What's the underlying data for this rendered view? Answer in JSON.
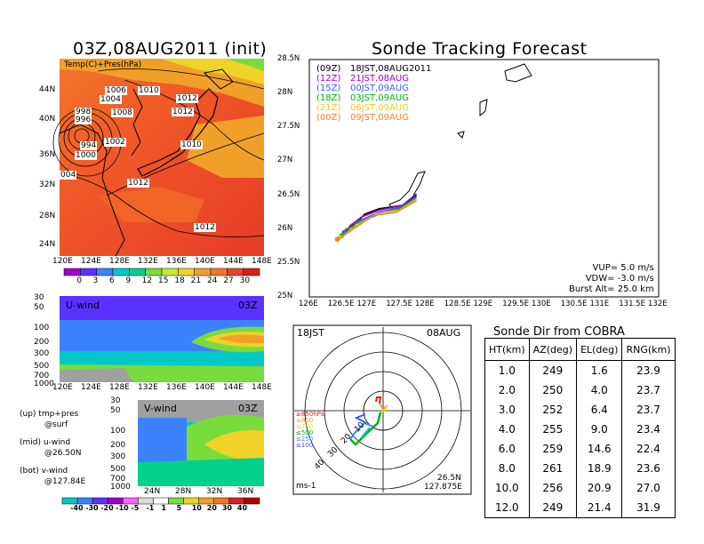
{
  "left_title": "03Z,08AUG2011 (init)",
  "right_title": "Sonde Tracking Forecast",
  "map_panel": {
    "label": "Temp(C)+Pres(hPa)",
    "lat_ticks": [
      "44N",
      "40N",
      "36N",
      "32N",
      "28N",
      "24N"
    ],
    "lon_ticks": [
      "120E",
      "124E",
      "128E",
      "132E",
      "136E",
      "140E",
      "144E",
      "148E"
    ],
    "contour_labels": [
      "1006",
      "1010",
      "1004",
      "998",
      "996",
      "1008",
      "1012",
      "1012",
      "994",
      "1002",
      "1000",
      "1010",
      "004",
      "1012",
      "1012"
    ],
    "colorbar_ticks": [
      "0",
      "3",
      "6",
      "9",
      "12",
      "15",
      "18",
      "21",
      "24",
      "27",
      "30"
    ],
    "colorbar_colors": [
      "#a000c8",
      "#5a32ff",
      "#3c82ff",
      "#00c8c8",
      "#00d28c",
      "#78dc3c",
      "#c8e632",
      "#f0d228",
      "#f0a028",
      "#f07828",
      "#e64628",
      "#dc1e1e"
    ]
  },
  "uwind_panel": {
    "label": "U-wind",
    "time": "03Z",
    "y_ticks": [
      "30",
      "50",
      "100",
      "200",
      "300",
      "500",
      "700",
      "1000"
    ],
    "x_ticks": [
      "120E",
      "124E",
      "128E",
      "132E",
      "136E",
      "140E",
      "144E",
      "148E"
    ]
  },
  "vwind_panel": {
    "label": "V-wind",
    "time": "03Z",
    "y_ticks": [
      "30",
      "50",
      "100",
      "200",
      "300",
      "500",
      "700",
      "1000"
    ],
    "x_ticks": [
      "24N",
      "28N",
      "32N",
      "36N"
    ],
    "colorbar_ticks": [
      "-40",
      "-30",
      "-20",
      "-10",
      "-5",
      "-1",
      "1",
      "5",
      "10",
      "20",
      "30",
      "40"
    ],
    "colorbar_colors": [
      "#00c8c8",
      "#3c82ff",
      "#5a32ff",
      "#a000c8",
      "#ff64ff",
      "#dcdcdc",
      "#ffffff",
      "#78dc3c",
      "#f0d228",
      "#f0a028",
      "#f07828",
      "#dc1e1e",
      "#b40000"
    ]
  },
  "notes": [
    {
      "line1": "(up) tmp+pres",
      "line2": "@surf"
    },
    {
      "line1": "(mid) u-wind",
      "line2": "@26.50N"
    },
    {
      "line1": "(bot) v-wind",
      "line2": "@127.84E"
    }
  ],
  "track_legend": [
    {
      "utc": "(09Z)",
      "jst": "18JST,08AUG2011",
      "color": "#000000"
    },
    {
      "utc": "(12Z)",
      "jst": "21JST,08AUG",
      "color": "#a000c8"
    },
    {
      "utc": "(15Z)",
      "jst": "00JST,09AUG",
      "color": "#3c5aff"
    },
    {
      "utc": "(18Z)",
      "jst": "03JST,09AUG",
      "color": "#00b400"
    },
    {
      "utc": "(21Z)",
      "jst": "06JST,09AUG",
      "color": "#f0c828"
    },
    {
      "utc": "(00Z)",
      "jst": "09JST,09AUG",
      "color": "#f08228"
    }
  ],
  "track_params": {
    "vup": "VUP= 5.0 m/s",
    "vdw": "VDW= -3.0 m/s",
    "burst": "Burst Alt= 25.0 km"
  },
  "polar": {
    "left_label": "18JST",
    "right_label": "08AUG",
    "units": "ms-1",
    "loc_lat": "26.5N",
    "loc_lon": "127.875E",
    "ring_labels": [
      "10",
      "20",
      "30",
      "40"
    ],
    "layer_labels": [
      {
        "text": "≥850hPa",
        "color": "#dc1e1e"
      },
      {
        "text": "≤850",
        "color": "#f0a028"
      },
      {
        "text": "≤700",
        "color": "#f0d228"
      },
      {
        "text": "≤500",
        "color": "#00b400"
      },
      {
        "text": "≤250",
        "color": "#3c82ff"
      },
      {
        "text": "≤100",
        "color": "#3c5aff"
      }
    ]
  },
  "cobra": {
    "title": "Sonde Dir from COBRA",
    "headers": [
      "HT(km)",
      "AZ(deg)",
      "EL(deg)",
      "RNG(km)"
    ],
    "rows": [
      [
        "1.0",
        "249",
        "1.6",
        "23.9"
      ],
      [
        "2.0",
        "250",
        "4.0",
        "23.7"
      ],
      [
        "3.0",
        "252",
        "6.4",
        "23.7"
      ],
      [
        "4.0",
        "255",
        "9.0",
        "23.4"
      ],
      [
        "6.0",
        "259",
        "14.6",
        "22.4"
      ],
      [
        "8.0",
        "261",
        "18.9",
        "23.6"
      ],
      [
        "10.0",
        "256",
        "20.9",
        "27.0"
      ],
      [
        "12.0",
        "249",
        "21.4",
        "31.9"
      ]
    ]
  },
  "chart_data": [
    {
      "type": "line",
      "title": "Sonde Tracking Forecast",
      "xlim": [
        126,
        132
      ],
      "ylim": [
        25,
        28.5
      ],
      "x_ticks": [
        "126E",
        "126.5E",
        "127E",
        "127.5E",
        "128E",
        "128.5E",
        "129E",
        "129.5E",
        "130E",
        "130.5E",
        "131E",
        "131.5E",
        "132E"
      ],
      "y_ticks": [
        "25N",
        "25.5N",
        "26N",
        "26.5N",
        "27N",
        "27.5N",
        "28N",
        "28.5N"
      ],
      "series": [
        {
          "name": "(09Z) 18JST,08AUG2011",
          "color": "#000000",
          "x": [
            127.84,
            127.6,
            127.2,
            126.95,
            126.82,
            126.75
          ],
          "y": [
            26.5,
            26.35,
            26.3,
            26.22,
            26.1,
            26.05
          ]
        },
        {
          "name": "(12Z) 21JST,08AUG",
          "color": "#a000c8",
          "x": [
            127.84,
            127.6,
            127.2,
            126.9,
            126.7,
            126.65
          ],
          "y": [
            26.52,
            26.35,
            26.28,
            26.18,
            26.05,
            25.98
          ]
        },
        {
          "name": "(15Z) 00JST,09AUG",
          "color": "#3c5aff",
          "x": [
            127.84,
            127.6,
            127.2,
            126.85,
            126.65,
            126.6
          ],
          "y": [
            26.48,
            26.33,
            26.25,
            26.12,
            25.98,
            25.95
          ]
        },
        {
          "name": "(18Z) 03JST,09AUG",
          "color": "#00b400",
          "x": [
            127.84,
            127.55,
            127.2,
            126.8,
            126.6,
            126.55
          ],
          "y": [
            26.46,
            26.3,
            26.22,
            26.08,
            25.95,
            25.9
          ]
        },
        {
          "name": "(21Z) 06JST,09AUG",
          "color": "#f0c828",
          "x": [
            127.84,
            127.55,
            127.15,
            126.8,
            126.58,
            126.52
          ],
          "y": [
            26.44,
            26.28,
            26.22,
            26.05,
            25.9,
            25.88
          ]
        },
        {
          "name": "(00Z) 09JST,09AUG",
          "color": "#f08228",
          "x": [
            127.84,
            127.5,
            127.1,
            126.75,
            126.55,
            126.48
          ],
          "y": [
            26.42,
            26.25,
            26.2,
            26.0,
            25.88,
            25.85
          ]
        }
      ]
    },
    {
      "type": "table",
      "title": "Sonde Dir from COBRA",
      "columns": [
        "HT(km)",
        "AZ(deg)",
        "EL(deg)",
        "RNG(km)"
      ]
    }
  ]
}
